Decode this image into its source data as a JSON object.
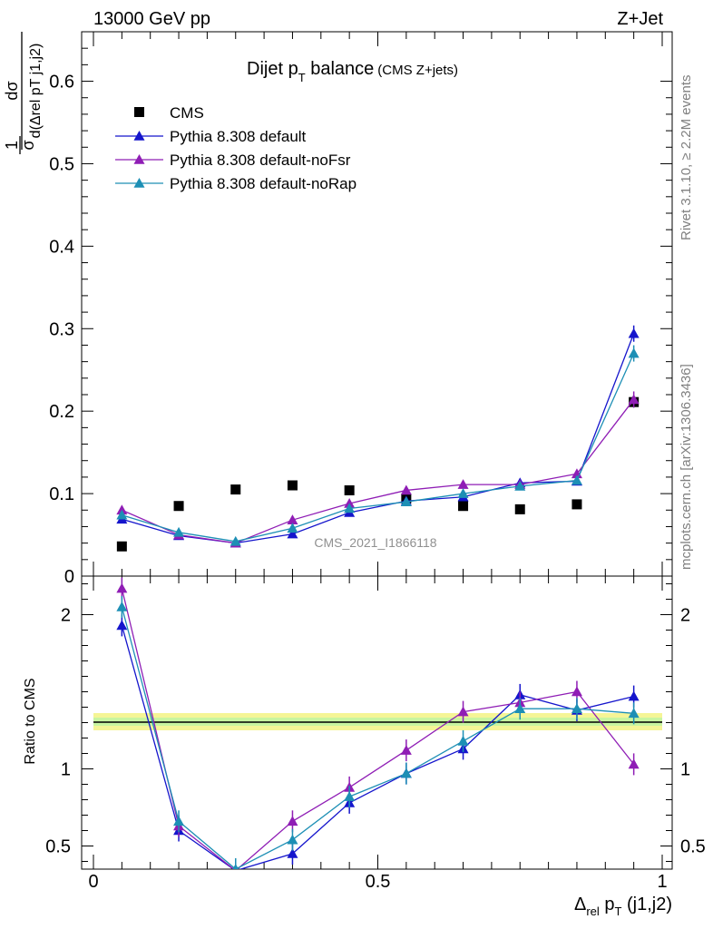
{
  "header": {
    "left": "13000 GeV pp",
    "right": "Z+Jet",
    "side_top": "Rivet 3.1.10, ≥ 2.2M events",
    "side_bottom": "mcplots.cern.ch [arXiv:1306.3436]"
  },
  "chart_data": [
    {
      "type": "scatter",
      "title_main": "Dijet p",
      "title_sub": "T",
      "title_rest": " balance",
      "title_small": "(CMS Z+jets)",
      "watermark": "CMS_2021_I1866118",
      "ylabel_frac_num": "1",
      "ylabel_frac_den": "σ",
      "ylabel_num": "dσ",
      "ylabel_den": "d(Δrel pT j1,j2)",
      "ylim": [
        0,
        0.66
      ],
      "yticks": [
        0,
        0.1,
        0.2,
        0.3,
        0.4,
        0.5,
        0.6
      ],
      "ytick_labels": [
        "0",
        "0.1",
        "0.2",
        "0.3",
        "0.4",
        "0.5",
        "0.6"
      ],
      "x": [
        0.05,
        0.15,
        0.25,
        0.35,
        0.45,
        0.55,
        0.65,
        0.75,
        0.85,
        0.95
      ],
      "legend_position": "top-left",
      "series": [
        {
          "name": "CMS",
          "color": "#000000",
          "marker": "square",
          "values": [
            0.036,
            0.085,
            0.105,
            0.11,
            0.104,
            0.094,
            0.085,
            0.081,
            0.087,
            0.211
          ]
        },
        {
          "name": "Pythia 8.308 default",
          "color": "#1515cc",
          "marker": "triangle",
          "values": [
            0.069,
            0.049,
            0.04,
            0.051,
            0.077,
            0.091,
            0.096,
            0.113,
            0.115,
            0.294
          ]
        },
        {
          "name": "Pythia 8.308 default-noFsr",
          "color": "#8f1db5",
          "marker": "triangle",
          "values": [
            0.08,
            0.05,
            0.04,
            0.068,
            0.088,
            0.104,
            0.111,
            0.111,
            0.124,
            0.214
          ]
        },
        {
          "name": "Pythia 8.308 default-noRap",
          "color": "#1d8fb5",
          "marker": "triangle",
          "values": [
            0.074,
            0.053,
            0.042,
            0.058,
            0.082,
            0.09,
            0.1,
            0.109,
            0.116,
            0.27
          ]
        }
      ]
    },
    {
      "type": "line",
      "ylabel": "Ratio to CMS",
      "xlabel_main": "Δ",
      "xlabel_sub1": "rel",
      "xlabel_mid": " p",
      "xlabel_sub2": "T",
      "xlabel_rest": " (j1,j2)",
      "xlim": [
        0,
        1
      ],
      "xticks": [
        0,
        0.5,
        1
      ],
      "xtick_labels": [
        "0",
        "0.5",
        "1"
      ],
      "ylim": [
        0.35,
        2.25
      ],
      "yticks": [
        0.5,
        1,
        2
      ],
      "ytick_labels": [
        "0.5",
        "1",
        "2"
      ],
      "x": [
        0.05,
        0.15,
        0.25,
        0.35,
        0.45,
        0.55,
        0.65,
        0.75,
        0.85,
        0.95
      ],
      "series": [
        {
          "name": "Pythia 8.308 default",
          "color": "#1515cc",
          "values": [
            1.93,
            0.6,
            0.34,
            0.45,
            0.78,
            0.97,
            1.13,
            1.48,
            1.38,
            1.47
          ]
        },
        {
          "name": "Pythia 8.308 default-noFsr",
          "color": "#8f1db5",
          "values": [
            2.17,
            0.63,
            0.34,
            0.66,
            0.88,
            1.12,
            1.37,
            1.43,
            1.5,
            1.03
          ]
        },
        {
          "name": "Pythia 8.308 default-noRap",
          "color": "#1d8fb5",
          "values": [
            2.05,
            0.66,
            0.35,
            0.54,
            0.82,
            0.97,
            1.18,
            1.39,
            1.39,
            1.36
          ]
        }
      ]
    }
  ]
}
